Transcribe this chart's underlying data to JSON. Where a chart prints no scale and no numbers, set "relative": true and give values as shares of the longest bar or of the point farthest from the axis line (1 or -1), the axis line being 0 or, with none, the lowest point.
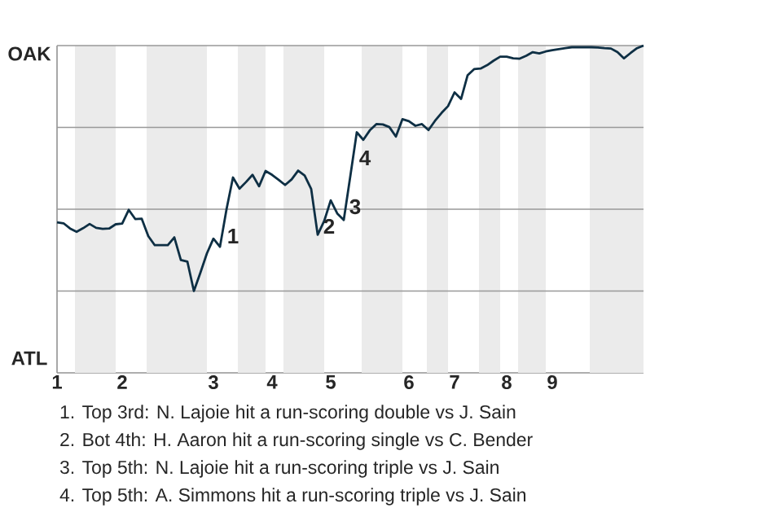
{
  "chart_data": {
    "type": "line",
    "relative": true,
    "categories": [
      "1",
      null,
      null,
      null,
      null,
      null,
      null,
      null,
      null,
      null,
      "2",
      null,
      null,
      null,
      null,
      null,
      null,
      null,
      null,
      null,
      null,
      null,
      null,
      null,
      "3",
      null,
      null,
      null,
      null,
      null,
      null,
      null,
      null,
      "4",
      null,
      null,
      null,
      null,
      null,
      null,
      null,
      null,
      "5",
      null,
      null,
      null,
      null,
      null,
      null,
      null,
      null,
      null,
      null,
      null,
      "6",
      null,
      null,
      null,
      null,
      null,
      null,
      "7",
      null,
      null,
      null,
      null,
      null,
      null,
      null,
      "8",
      null,
      null,
      null,
      null,
      null,
      null,
      "9",
      null,
      null,
      null,
      null,
      null,
      null,
      null,
      null,
      null,
      null,
      null,
      null,
      null,
      null
    ],
    "series": [
      {
        "color": "#0e2f44",
        "values": [
          0.46,
          0.457,
          0.441,
          0.431,
          0.442,
          0.455,
          0.443,
          0.44,
          0.441,
          0.454,
          0.456,
          0.498,
          0.47,
          0.471,
          0.418,
          0.39,
          0.39,
          0.39,
          0.414,
          0.345,
          0.34,
          0.25,
          0.306,
          0.365,
          0.41,
          0.385,
          0.499,
          0.597,
          0.563,
          0.583,
          0.605,
          0.57,
          0.617,
          0.605,
          0.59,
          0.574,
          0.591,
          0.618,
          0.603,
          0.562,
          0.422,
          0.464,
          0.527,
          0.487,
          0.467,
          0.6,
          0.735,
          0.712,
          0.741,
          0.76,
          0.759,
          0.751,
          0.722,
          0.775,
          0.769,
          0.755,
          0.76,
          0.742,
          0.77,
          0.794,
          0.815,
          0.857,
          0.837,
          0.909,
          0.928,
          0.93,
          0.94,
          0.954,
          0.966,
          0.966,
          0.961,
          0.96,
          0.969,
          0.98,
          0.976,
          0.982,
          0.986,
          0.989,
          0.992,
          0.995,
          0.995,
          0.995,
          0.995,
          0.994,
          0.992,
          0.991,
          0.98,
          0.961,
          0.977,
          0.992,
          1
        ]
      }
    ],
    "ref_lines": [
      {
        "axis": "y",
        "value": 0.25,
        "color": "#999999"
      },
      {
        "axis": "y",
        "value": 0.5,
        "color": "#999999"
      },
      {
        "axis": "y",
        "value": 0.75,
        "color": "#999999"
      },
      {
        "axis": "y",
        "value": 1,
        "color": "#999999"
      }
    ],
    "annotations": [
      "OAK",
      "ATL",
      "1",
      "2",
      "3",
      "4",
      "1. Top 3rd: N. Lajoie hit a run-scoring double vs J. Sain",
      "2. Bot 4th: H. Aaron hit a run-scoring single vs C. Bender",
      "3. Top 5th: N. Lajoie hit a run-scoring triple vs J. Sain",
      "4. Top 5th: A. Simmons hit a run-scoring triple vs J. Sain"
    ]
  }
}
